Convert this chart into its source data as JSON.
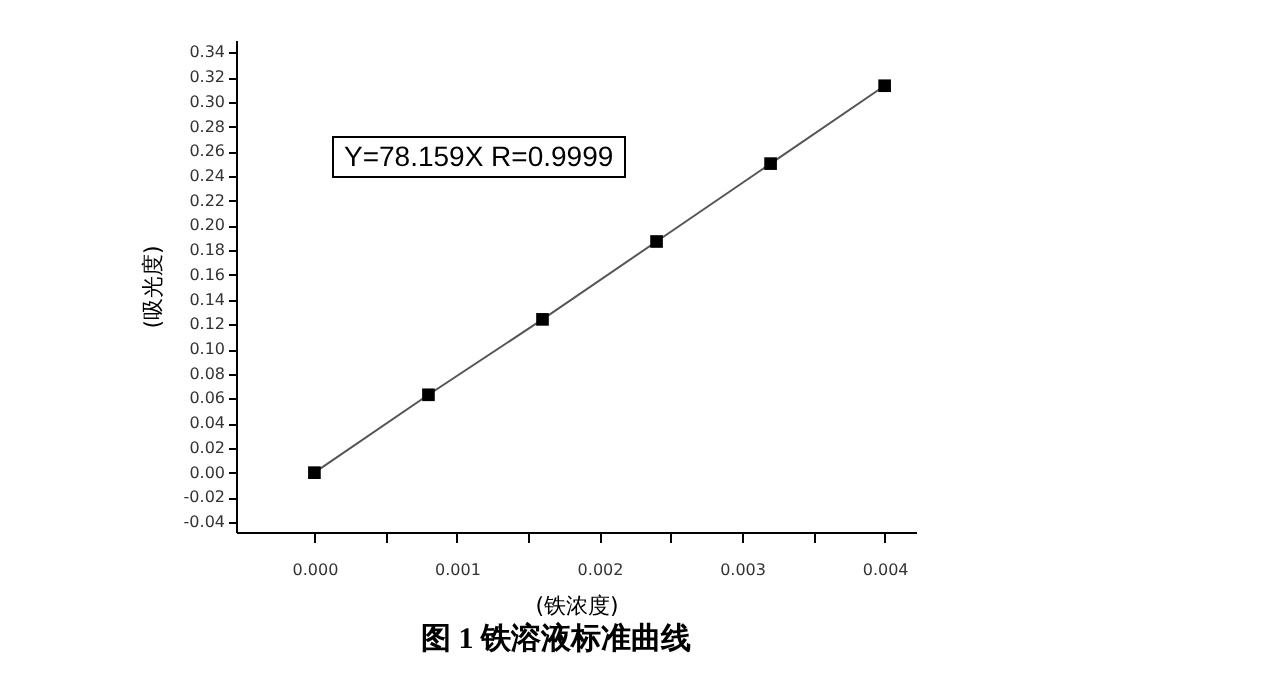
{
  "chart_data": {
    "type": "line",
    "title": "图 1    铁溶液标准曲线",
    "xlabel": "(铁浓度)",
    "ylabel": "(吸光度)",
    "annotations": [
      "Y=78.159X R=0.9999"
    ],
    "x": [
      0,
      0.0008,
      0.0016,
      0.0024,
      0.0032,
      0.004
    ],
    "series": [
      {
        "color": "#000000",
        "values": [
          0.0,
          0.063,
          0.124,
          0.187,
          0.25,
          0.313
        ]
      }
    ],
    "xlim": [
      -0.00055,
      0.00422
    ],
    "xticks": [
      {
        "value": 0,
        "label": "0.000"
      },
      {
        "value": 0.0005,
        "label": null
      },
      {
        "value": 0.001,
        "label": "0.001"
      },
      {
        "value": 0.0015,
        "label": null
      },
      {
        "value": 0.002,
        "label": "0.002"
      },
      {
        "value": 0.0025,
        "label": null
      },
      {
        "value": 0.003,
        "label": "0.003"
      },
      {
        "value": 0.0035,
        "label": null
      },
      {
        "value": 0.004,
        "label": "0.004"
      }
    ],
    "ylim": [
      -0.048,
      0.35
    ],
    "yticks": [
      {
        "value": -0.04,
        "label": "-0.04"
      },
      {
        "value": -0.02,
        "label": "-0.02"
      },
      {
        "value": 0,
        "label": "0.00"
      },
      {
        "value": 0.02,
        "label": "0.02"
      },
      {
        "value": 0.04,
        "label": "0.04"
      },
      {
        "value": 0.06,
        "label": "0.06"
      },
      {
        "value": 0.08,
        "label": "0.08"
      },
      {
        "value": 0.1,
        "label": "0.10"
      },
      {
        "value": 0.12,
        "label": "0.12"
      },
      {
        "value": 0.14,
        "label": "0.14"
      },
      {
        "value": 0.16,
        "label": "0.16"
      },
      {
        "value": 0.18,
        "label": "0.18"
      },
      {
        "value": 0.2,
        "label": "0.20"
      },
      {
        "value": 0.22,
        "label": "0.22"
      },
      {
        "value": 0.24,
        "label": "0.24"
      },
      {
        "value": 0.26,
        "label": "0.26"
      },
      {
        "value": 0.28,
        "label": "0.28"
      },
      {
        "value": 0.3,
        "label": "0.30"
      },
      {
        "value": 0.32,
        "label": "0.32"
      },
      {
        "value": 0.34,
        "label": "0.34"
      }
    ],
    "marker": "square",
    "line_style": "solid"
  }
}
